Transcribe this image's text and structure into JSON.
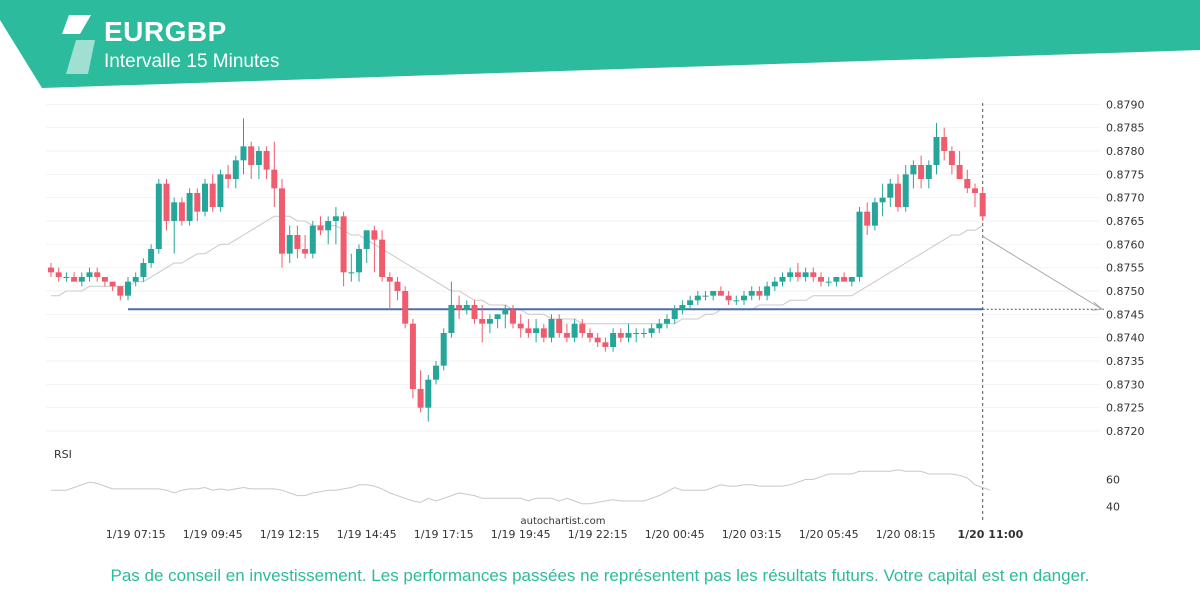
{
  "header": {
    "title": "EURGBP",
    "subtitle": "Intervalle 15 Minutes",
    "brand_color": "#2cbb9c",
    "logo": "autochartist-logo-icon"
  },
  "footer": {
    "disclaimer": "Pas de conseil en investissement. Les performances passées ne représentent pas les résultats futurs. Votre capital est en danger.",
    "disclaimer_color": "#2cbb9c",
    "watermark": "autochartist.com"
  },
  "colors": {
    "up": "#26a69a",
    "down": "#ef5c6e",
    "support_line": "#4a6fa5",
    "moving_average": "#c8c8c8",
    "rsi": "#c8c8c8"
  },
  "chart_data": {
    "type": "candlestick",
    "price_axis": {
      "ylim": [
        0.8717,
        0.8792
      ],
      "ticks": [
        "0.8790",
        "0.8785",
        "0.8780",
        "0.8775",
        "0.8770",
        "0.8765",
        "0.8760",
        "0.8755",
        "0.8750",
        "0.8745",
        "0.8740",
        "0.8735",
        "0.8730",
        "0.8725",
        "0.8720"
      ]
    },
    "x_axis": {
      "labels": [
        "1/19 07:15",
        "1/19 09:45",
        "1/19 12:15",
        "1/19 14:45",
        "1/19 17:15",
        "1/19 19:45",
        "1/19 22:15",
        "1/20 00:45",
        "1/20 03:15",
        "1/20 05:45",
        "1/20 08:15",
        "1/20 11:00"
      ],
      "label_index": [
        11,
        21,
        31,
        41,
        51,
        61,
        71,
        81,
        91,
        101,
        111,
        122
      ],
      "current_label": "1/20 11:00"
    },
    "candles": [
      [
        0.8755,
        0.8756,
        0.8753,
        0.8754
      ],
      [
        0.8754,
        0.8755,
        0.8752,
        0.8753
      ],
      [
        0.8753,
        0.8754,
        0.8752,
        0.8753
      ],
      [
        0.8753,
        0.8754,
        0.8752,
        0.8752
      ],
      [
        0.8752,
        0.8754,
        0.8751,
        0.8753
      ],
      [
        0.8753,
        0.8755,
        0.8752,
        0.8754
      ],
      [
        0.8754,
        0.8755,
        0.8752,
        0.8753
      ],
      [
        0.8753,
        0.8753,
        0.8751,
        0.8752
      ],
      [
        0.8752,
        0.8752,
        0.875,
        0.8751
      ],
      [
        0.8751,
        0.8751,
        0.8748,
        0.8749
      ],
      [
        0.8749,
        0.8753,
        0.8748,
        0.8752
      ],
      [
        0.8752,
        0.8754,
        0.8751,
        0.8753
      ],
      [
        0.8753,
        0.8757,
        0.8752,
        0.8756
      ],
      [
        0.8756,
        0.876,
        0.8755,
        0.8759
      ],
      [
        0.8759,
        0.8774,
        0.8758,
        0.8773
      ],
      [
        0.8773,
        0.8774,
        0.8763,
        0.8765
      ],
      [
        0.8765,
        0.877,
        0.8758,
        0.8769
      ],
      [
        0.8769,
        0.877,
        0.8764,
        0.8765
      ],
      [
        0.8765,
        0.8772,
        0.8764,
        0.8771
      ],
      [
        0.8771,
        0.8772,
        0.8765,
        0.8767
      ],
      [
        0.8767,
        0.8774,
        0.8766,
        0.8773
      ],
      [
        0.8773,
        0.8775,
        0.8767,
        0.8768
      ],
      [
        0.8768,
        0.8776,
        0.8767,
        0.8775
      ],
      [
        0.8775,
        0.8777,
        0.8772,
        0.8774
      ],
      [
        0.8774,
        0.8779,
        0.8772,
        0.8778
      ],
      [
        0.8778,
        0.8787,
        0.8775,
        0.8781
      ],
      [
        0.8781,
        0.8782,
        0.8774,
        0.8777
      ],
      [
        0.8777,
        0.8781,
        0.8774,
        0.878
      ],
      [
        0.878,
        0.8781,
        0.8774,
        0.8776
      ],
      [
        0.8776,
        0.8782,
        0.8768,
        0.8772
      ],
      [
        0.8772,
        0.8774,
        0.8755,
        0.8758
      ],
      [
        0.8758,
        0.8764,
        0.8756,
        0.8762
      ],
      [
        0.8762,
        0.8764,
        0.8757,
        0.8759
      ],
      [
        0.8759,
        0.8762,
        0.8757,
        0.8758
      ],
      [
        0.8758,
        0.8765,
        0.8757,
        0.8764
      ],
      [
        0.8764,
        0.8766,
        0.8762,
        0.8763
      ],
      [
        0.8763,
        0.8766,
        0.876,
        0.8765
      ],
      [
        0.8765,
        0.8768,
        0.876,
        0.8766
      ],
      [
        0.8766,
        0.8767,
        0.8751,
        0.8754
      ],
      [
        0.8754,
        0.8758,
        0.8752,
        0.8754
      ],
      [
        0.8754,
        0.876,
        0.8752,
        0.8759
      ],
      [
        0.8759,
        0.8763,
        0.8756,
        0.8763
      ],
      [
        0.8763,
        0.8764,
        0.8754,
        0.8761
      ],
      [
        0.8761,
        0.8763,
        0.8752,
        0.8753
      ],
      [
        0.8753,
        0.8754,
        0.8746,
        0.8752
      ],
      [
        0.8752,
        0.8753,
        0.8748,
        0.875
      ],
      [
        0.875,
        0.8751,
        0.8742,
        0.8743
      ],
      [
        0.8743,
        0.8744,
        0.8727,
        0.8729
      ],
      [
        0.8729,
        0.8733,
        0.8724,
        0.8725
      ],
      [
        0.8725,
        0.8732,
        0.8722,
        0.8731
      ],
      [
        0.8731,
        0.8735,
        0.873,
        0.8734
      ],
      [
        0.8734,
        0.8742,
        0.8733,
        0.8741
      ],
      [
        0.8741,
        0.8752,
        0.874,
        0.8747
      ],
      [
        0.8747,
        0.8749,
        0.8744,
        0.8746
      ],
      [
        0.8746,
        0.8748,
        0.8745,
        0.8747
      ],
      [
        0.8747,
        0.8748,
        0.8743,
        0.8744
      ],
      [
        0.8744,
        0.8747,
        0.8739,
        0.8743
      ],
      [
        0.8743,
        0.8745,
        0.8741,
        0.8744
      ],
      [
        0.8744,
        0.8745,
        0.8742,
        0.8745
      ],
      [
        0.8745,
        0.8747,
        0.8742,
        0.8746
      ],
      [
        0.8746,
        0.8747,
        0.8742,
        0.8743
      ],
      [
        0.8743,
        0.8745,
        0.874,
        0.8742
      ],
      [
        0.8742,
        0.8744,
        0.874,
        0.8741
      ],
      [
        0.8741,
        0.8744,
        0.8739,
        0.8742
      ],
      [
        0.8742,
        0.8743,
        0.8739,
        0.874
      ],
      [
        0.874,
        0.8745,
        0.8739,
        0.8744
      ],
      [
        0.8744,
        0.8745,
        0.874,
        0.8741
      ],
      [
        0.8741,
        0.8743,
        0.8739,
        0.874
      ],
      [
        0.874,
        0.8744,
        0.8739,
        0.8743
      ],
      [
        0.8743,
        0.8744,
        0.874,
        0.8741
      ],
      [
        0.8741,
        0.8742,
        0.8739,
        0.874
      ],
      [
        0.874,
        0.8741,
        0.8738,
        0.8739
      ],
      [
        0.8739,
        0.874,
        0.8737,
        0.8738
      ],
      [
        0.8738,
        0.8742,
        0.8737,
        0.8741
      ],
      [
        0.8741,
        0.8742,
        0.8739,
        0.874
      ],
      [
        0.874,
        0.8743,
        0.8739,
        0.8741
      ],
      [
        0.8741,
        0.8742,
        0.8739,
        0.8741
      ],
      [
        0.8741,
        0.8742,
        0.874,
        0.8741
      ],
      [
        0.8741,
        0.8743,
        0.874,
        0.8742
      ],
      [
        0.8742,
        0.8744,
        0.8741,
        0.8743
      ],
      [
        0.8743,
        0.8745,
        0.8742,
        0.8744
      ],
      [
        0.8744,
        0.8747,
        0.8743,
        0.8746
      ],
      [
        0.8746,
        0.8748,
        0.8745,
        0.8747
      ],
      [
        0.8747,
        0.8749,
        0.8746,
        0.8748
      ],
      [
        0.8748,
        0.875,
        0.8747,
        0.8749
      ],
      [
        0.8749,
        0.875,
        0.8748,
        0.8749
      ],
      [
        0.8749,
        0.875,
        0.8748,
        0.875
      ],
      [
        0.875,
        0.8751,
        0.8749,
        0.8749
      ],
      [
        0.8749,
        0.875,
        0.8747,
        0.8748
      ],
      [
        0.8748,
        0.8749,
        0.8747,
        0.8748
      ],
      [
        0.8748,
        0.875,
        0.8747,
        0.8749
      ],
      [
        0.8749,
        0.8751,
        0.8748,
        0.875
      ],
      [
        0.875,
        0.8751,
        0.8748,
        0.8749
      ],
      [
        0.8749,
        0.8752,
        0.8748,
        0.8751
      ],
      [
        0.8751,
        0.8753,
        0.875,
        0.8752
      ],
      [
        0.8752,
        0.8754,
        0.8751,
        0.8753
      ],
      [
        0.8753,
        0.8755,
        0.8752,
        0.8754
      ],
      [
        0.8754,
        0.8756,
        0.8752,
        0.8753
      ],
      [
        0.8753,
        0.8755,
        0.8752,
        0.8754
      ],
      [
        0.8754,
        0.8755,
        0.8752,
        0.8753
      ],
      [
        0.8753,
        0.8754,
        0.8751,
        0.8752
      ],
      [
        0.8752,
        0.8753,
        0.8751,
        0.8752
      ],
      [
        0.8752,
        0.8753,
        0.8751,
        0.8753
      ],
      [
        0.8753,
        0.8754,
        0.8752,
        0.8752
      ],
      [
        0.8752,
        0.8753,
        0.8751,
        0.8753
      ],
      [
        0.8753,
        0.8768,
        0.8752,
        0.8767
      ],
      [
        0.8767,
        0.8769,
        0.8762,
        0.8764
      ],
      [
        0.8764,
        0.877,
        0.8763,
        0.8769
      ],
      [
        0.8769,
        0.8773,
        0.8766,
        0.877
      ],
      [
        0.877,
        0.8774,
        0.8768,
        0.8773
      ],
      [
        0.8773,
        0.8775,
        0.8767,
        0.8768
      ],
      [
        0.8768,
        0.8777,
        0.8767,
        0.8775
      ],
      [
        0.8775,
        0.8778,
        0.8772,
        0.8777
      ],
      [
        0.8777,
        0.8779,
        0.8772,
        0.8774
      ],
      [
        0.8774,
        0.8778,
        0.8772,
        0.8777
      ],
      [
        0.8777,
        0.8786,
        0.8775,
        0.8783
      ],
      [
        0.8783,
        0.8785,
        0.8778,
        0.878
      ],
      [
        0.878,
        0.8781,
        0.8775,
        0.8777
      ],
      [
        0.8777,
        0.878,
        0.8774,
        0.8774
      ],
      [
        0.8774,
        0.8776,
        0.8771,
        0.8772
      ],
      [
        0.8772,
        0.8773,
        0.8768,
        0.8771
      ],
      [
        0.8771,
        0.8772,
        0.8765,
        0.8766
      ]
    ],
    "moving_average": [
      0.8749,
      0.8749,
      0.875,
      0.875,
      0.875,
      0.8751,
      0.8751,
      0.8751,
      0.8751,
      0.8751,
      0.8751,
      0.8752,
      0.8752,
      0.8753,
      0.8754,
      0.8755,
      0.8756,
      0.8756,
      0.8757,
      0.8758,
      0.8758,
      0.8759,
      0.876,
      0.876,
      0.8761,
      0.8762,
      0.8763,
      0.8764,
      0.8765,
      0.8766,
      0.8766,
      0.8766,
      0.8765,
      0.8765,
      0.8764,
      0.8764,
      0.8764,
      0.8764,
      0.8763,
      0.8762,
      0.8762,
      0.8761,
      0.876,
      0.8759,
      0.8758,
      0.8757,
      0.8756,
      0.8755,
      0.8754,
      0.8753,
      0.8752,
      0.8751,
      0.875,
      0.875,
      0.8749,
      0.8748,
      0.8748,
      0.8747,
      0.8747,
      0.8747,
      0.8746,
      0.8746,
      0.8745,
      0.8745,
      0.8745,
      0.8744,
      0.8744,
      0.8744,
      0.8744,
      0.8743,
      0.8743,
      0.8743,
      0.8743,
      0.8743,
      0.8743,
      0.8743,
      0.8743,
      0.8743,
      0.8743,
      0.8743,
      0.8743,
      0.8743,
      0.8744,
      0.8744,
      0.8744,
      0.8745,
      0.8745,
      0.8746,
      0.8746,
      0.8746,
      0.8746,
      0.8746,
      0.8747,
      0.8747,
      0.8747,
      0.8747,
      0.8748,
      0.8748,
      0.8748,
      0.8749,
      0.8749,
      0.8749,
      0.8749,
      0.8749,
      0.8749,
      0.875,
      0.8751,
      0.8752,
      0.8753,
      0.8754,
      0.8755,
      0.8756,
      0.8757,
      0.8758,
      0.8759,
      0.876,
      0.8761,
      0.8762,
      0.8762,
      0.8763,
      0.8763,
      0.8764
    ],
    "support_level": 0.87461,
    "support_start_index": 10,
    "forecast_target": 0.87461,
    "rsi": {
      "label": "RSI",
      "ylim": [
        30,
        78
      ],
      "ticks": [
        "60",
        "40"
      ],
      "values": [
        52,
        52,
        52,
        54,
        56,
        58,
        57,
        55,
        53,
        53,
        53,
        53,
        53,
        53,
        53,
        52,
        50,
        52,
        53,
        53,
        54,
        52,
        53,
        52,
        53,
        54,
        53,
        53,
        53,
        53,
        52,
        50,
        48,
        48,
        50,
        51,
        52,
        52,
        53,
        54,
        56,
        56,
        55,
        53,
        50,
        48,
        46,
        44,
        43,
        46,
        44,
        46,
        48,
        50,
        49,
        48,
        46,
        46,
        46,
        46,
        46,
        46,
        44,
        46,
        46,
        46,
        44,
        46,
        44,
        42,
        42,
        43,
        44,
        45,
        44,
        44,
        44,
        44,
        46,
        48,
        51,
        54,
        52,
        52,
        52,
        52,
        54,
        56,
        55,
        55,
        56,
        56,
        55,
        55,
        55,
        55,
        56,
        58,
        60,
        60,
        62,
        64,
        64,
        64,
        64,
        66,
        66,
        66,
        66,
        66,
        67,
        66,
        66,
        66,
        64,
        64,
        64,
        64,
        63,
        61,
        56,
        54,
        52
      ]
    }
  }
}
